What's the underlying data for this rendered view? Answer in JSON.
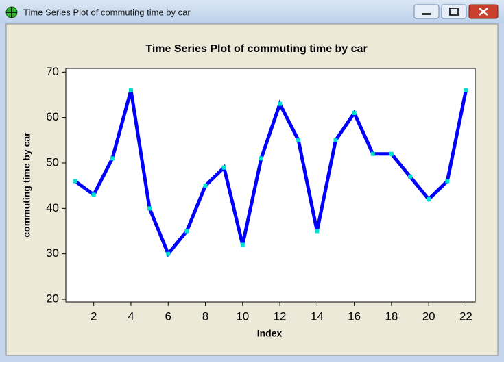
{
  "window": {
    "title": "Time Series Plot of commuting time by car"
  },
  "chart_data": {
    "type": "line",
    "title": "Time Series Plot of commuting time by car",
    "x_label": "Index",
    "y_label": "commuting time by car",
    "x": [
      1,
      2,
      3,
      4,
      5,
      6,
      7,
      8,
      9,
      10,
      11,
      12,
      13,
      14,
      15,
      16,
      17,
      18,
      19,
      20,
      21,
      22
    ],
    "series": [
      {
        "name": "commuting time by car",
        "color": "#0000ff",
        "marker_color": "#00e0d0",
        "values": [
          46,
          43,
          51,
          66,
          40,
          30,
          35,
          45,
          49,
          32,
          51,
          63,
          55,
          35,
          55,
          61,
          52,
          52,
          47,
          42,
          46,
          66
        ]
      }
    ],
    "xlim": [
      0.5,
      22.5
    ],
    "xticks": [
      2,
      4,
      6,
      8,
      10,
      12,
      14,
      16,
      18,
      20,
      22
    ],
    "ylim": [
      19.4,
      70.8
    ],
    "yticks": [
      20,
      30,
      40,
      50,
      60,
      70
    ],
    "grid": false
  }
}
